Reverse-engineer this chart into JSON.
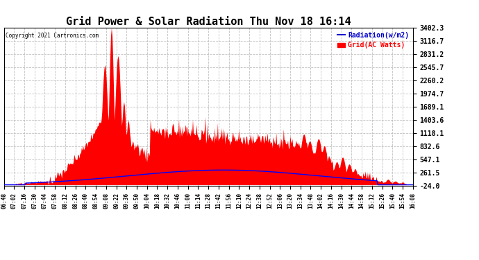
{
  "title": "Grid Power & Solar Radiation Thu Nov 18 16:14",
  "copyright": "Copyright 2021 Cartronics.com",
  "legend_radiation": "Radiation(w/m2)",
  "legend_grid": "Grid(AC Watts)",
  "ylabel_right_values": [
    3402.3,
    3116.7,
    2831.2,
    2545.7,
    2260.2,
    1974.7,
    1689.1,
    1403.6,
    1118.1,
    832.6,
    547.1,
    261.5,
    -24.0
  ],
  "ymin": -24.0,
  "ymax": 3402.3,
  "background_color": "#ffffff",
  "grid_line_color": "#bbbbbb",
  "radiation_color": "#0000ff",
  "grid_fill_color": "#ff0000",
  "title_color": "#000000",
  "copyright_color": "#000000",
  "radiation_legend_color": "#0000cc",
  "grid_legend_color": "#ff0000",
  "x_tick_labels": [
    "06:48",
    "07:02",
    "07:16",
    "07:30",
    "07:44",
    "07:58",
    "08:12",
    "08:26",
    "08:40",
    "08:54",
    "09:08",
    "09:22",
    "09:36",
    "09:50",
    "10:04",
    "10:18",
    "10:32",
    "10:46",
    "11:00",
    "11:14",
    "11:28",
    "11:42",
    "11:56",
    "12:10",
    "12:24",
    "12:38",
    "12:52",
    "13:06",
    "13:20",
    "13:34",
    "13:48",
    "14:02",
    "14:16",
    "14:30",
    "14:44",
    "14:58",
    "15:12",
    "15:26",
    "15:40",
    "15:54",
    "16:08"
  ]
}
